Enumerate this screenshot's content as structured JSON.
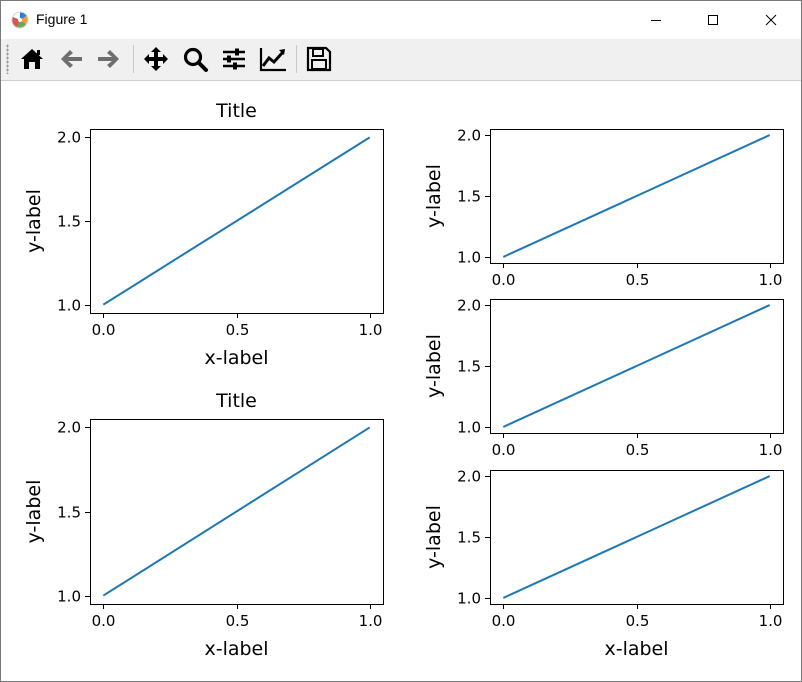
{
  "window": {
    "title": "Figure 1",
    "icon": "matplotlib-logo-icon",
    "controls": [
      "minimize-icon",
      "maximize-icon",
      "close-icon"
    ]
  },
  "toolbar": {
    "buttons": [
      {
        "name": "home-button",
        "icon": "home-icon"
      },
      {
        "name": "back-button",
        "icon": "arrow-left-icon"
      },
      {
        "name": "forward-button",
        "icon": "arrow-right-icon"
      },
      {
        "name": "pan-button",
        "icon": "move-icon"
      },
      {
        "name": "zoom-button",
        "icon": "magnifier-icon"
      },
      {
        "name": "subplots-button",
        "icon": "sliders-icon"
      },
      {
        "name": "customize-button",
        "icon": "line-chart-icon"
      },
      {
        "name": "save-button",
        "icon": "floppy-disk-icon"
      }
    ]
  },
  "chart_data": [
    {
      "type": "line",
      "title": "Title",
      "xlabel": "x-label",
      "ylabel": "y-label",
      "x": [
        0,
        1
      ],
      "y": [
        1,
        2
      ],
      "xticks": [
        "0.0",
        "0.5",
        "1.0"
      ],
      "yticks": [
        "1.0",
        "1.5",
        "2.0"
      ],
      "xlim": [
        -0.05,
        1.05
      ],
      "ylim": [
        0.95,
        2.05
      ],
      "color": "#1f77b4",
      "grid": false
    },
    {
      "type": "line",
      "title": "Title",
      "xlabel": "x-label",
      "ylabel": "y-label",
      "x": [
        0,
        1
      ],
      "y": [
        1,
        2
      ],
      "xticks": [
        "0.0",
        "0.5",
        "1.0"
      ],
      "yticks": [
        "1.0",
        "1.5",
        "2.0"
      ],
      "xlim": [
        -0.05,
        1.05
      ],
      "ylim": [
        0.95,
        2.05
      ],
      "color": "#1f77b4",
      "grid": false
    },
    {
      "type": "line",
      "title": "",
      "xlabel": "",
      "ylabel": "y-label",
      "x": [
        0,
        1
      ],
      "y": [
        1,
        2
      ],
      "xticks": [
        "0.0",
        "0.5",
        "1.0"
      ],
      "yticks": [
        "1.0",
        "1.5",
        "2.0"
      ],
      "xlim": [
        -0.05,
        1.05
      ],
      "ylim": [
        0.95,
        2.05
      ],
      "color": "#1f77b4",
      "grid": false
    },
    {
      "type": "line",
      "title": "",
      "xlabel": "",
      "ylabel": "y-label",
      "x": [
        0,
        1
      ],
      "y": [
        1,
        2
      ],
      "xticks": [
        "0.0",
        "0.5",
        "1.0"
      ],
      "yticks": [
        "1.0",
        "1.5",
        "2.0"
      ],
      "xlim": [
        -0.05,
        1.05
      ],
      "ylim": [
        0.95,
        2.05
      ],
      "color": "#1f77b4",
      "grid": false
    },
    {
      "type": "line",
      "title": "",
      "xlabel": "x-label",
      "ylabel": "y-label",
      "x": [
        0,
        1
      ],
      "y": [
        1,
        2
      ],
      "xticks": [
        "0.0",
        "0.5",
        "1.0"
      ],
      "yticks": [
        "1.0",
        "1.5",
        "2.0"
      ],
      "xlim": [
        -0.05,
        1.05
      ],
      "ylim": [
        0.95,
        2.05
      ],
      "color": "#1f77b4",
      "grid": false
    }
  ]
}
